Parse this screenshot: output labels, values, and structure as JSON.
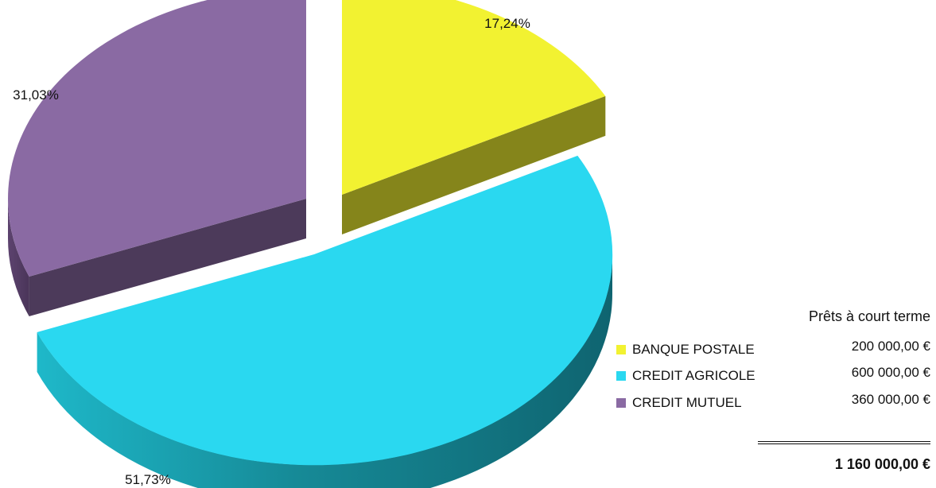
{
  "chart_data": {
    "type": "pie",
    "title": "",
    "categories": [
      "BANQUE POSTALE",
      "CREDIT AGRICOLE",
      "CREDIT MUTUEL"
    ],
    "values": [
      17.24,
      51.73,
      31.03
    ],
    "value_unit": "%",
    "data_labels": [
      "17,24%",
      "51,73%",
      "31,03%"
    ],
    "colors": [
      "#f2f231",
      "#2ad8f0",
      "#8a6aa3"
    ],
    "legend_position": "bottom-right",
    "exploded": true,
    "three_d": true
  },
  "summary": {
    "column_title": "Prêts à court terme",
    "amounts": [
      "200 000,00 €",
      "600 000,00 €",
      "360 000,00 €"
    ],
    "total": "1 160 000,00 €"
  }
}
